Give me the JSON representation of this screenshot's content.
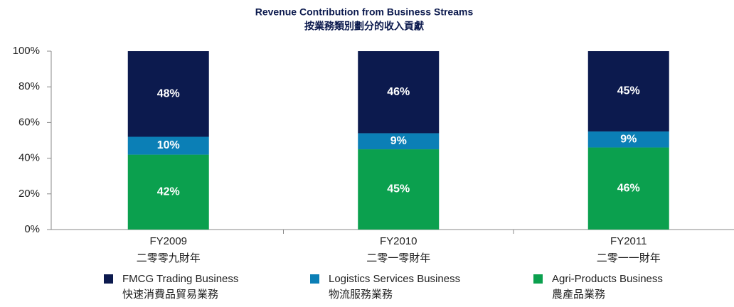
{
  "chart_data": {
    "type": "stacked_bar",
    "title": "Revenue Contribution from Business Streams",
    "subtitle": "按業務類別劃分的收入貢獻",
    "categories": [
      "FY2009",
      "FY2010",
      "FY2011"
    ],
    "categories_zh": [
      "二零零九財年",
      "二零一零財年",
      "二零一一財年"
    ],
    "series": [
      {
        "name": "FMCG Trading Business",
        "name_zh": "快速消費品貿易業務",
        "color": "#0c1a4e",
        "values": [
          48,
          46,
          45
        ],
        "value_labels": [
          "48%",
          "46%",
          "45%"
        ]
      },
      {
        "name": "Logistics Services Business",
        "name_zh": "物流服務業務",
        "color": "#0b7fb6",
        "values": [
          10,
          9,
          9
        ],
        "value_labels": [
          "10%",
          "9%",
          "9%"
        ]
      },
      {
        "name": "Agri-Products Business",
        "name_zh": "農產品業務",
        "color": "#0ba04e",
        "values": [
          42,
          45,
          46
        ],
        "value_labels": [
          "42%",
          "45%",
          "46%"
        ]
      }
    ],
    "ylim": [
      0,
      100
    ],
    "yticks": [
      {
        "value": 0,
        "label": "0%"
      },
      {
        "value": 20,
        "label": "20%"
      },
      {
        "value": 40,
        "label": "40%"
      },
      {
        "value": 60,
        "label": "60%"
      },
      {
        "value": 80,
        "label": "80%"
      },
      {
        "value": 100,
        "label": "100%"
      }
    ],
    "grid": false,
    "legend": "bottom"
  }
}
